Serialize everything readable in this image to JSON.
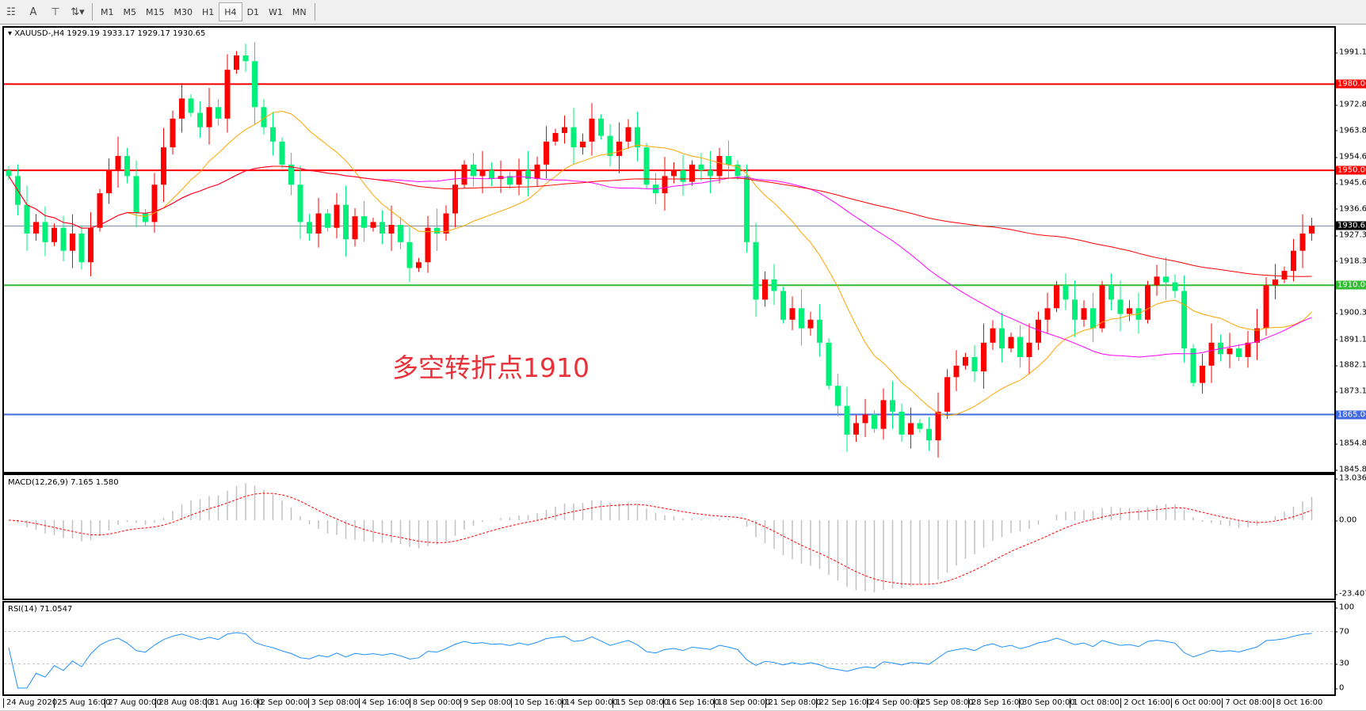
{
  "toolbar": {
    "icons": [
      "grid-icon",
      "text-a-icon",
      "text-label-icon",
      "arrows-icon"
    ],
    "text_icon": "A",
    "timeframes": [
      "M1",
      "M5",
      "M15",
      "M30",
      "H1",
      "H4",
      "D1",
      "W1",
      "MN"
    ],
    "active": "H4"
  },
  "chart": {
    "symbol_header": "XAUUSD-,H4  1929.19 1933.17 1929.17 1930.65",
    "annotation": "多空转折点1910"
  },
  "price_axis": {
    "labels": [
      "1991.10",
      "1972.85",
      "1963.85",
      "1954.60",
      "1945.60",
      "1936.60",
      "1927.35",
      "1918.35",
      "1900.35",
      "1891.10",
      "1882.10",
      "1873.10",
      "1854.85",
      "1845.85"
    ],
    "range": [
      1845.85,
      1991.1
    ]
  },
  "levels": [
    {
      "value": 1980,
      "label": "1980.00",
      "color": "#ff0000"
    },
    {
      "value": 1950,
      "label": "1950.00",
      "color": "#ff0000"
    },
    {
      "value": 1930.65,
      "label": "1930.65",
      "color": "#000000",
      "line": "#778899"
    },
    {
      "value": 1910,
      "label": "1910.00",
      "color": "#33bb33"
    },
    {
      "value": 1865,
      "label": "1865.00",
      "color": "#4169e1"
    }
  ],
  "colors": {
    "up": "#ff0000",
    "down": "#00f07a",
    "ma_fast": "#ffa500",
    "ma_mid": "#ff00ff",
    "ma_slow": "#ff0000",
    "rsi": "#1e90ff",
    "macd_hist": "#c0c0c0",
    "macd_signal": "#ff0000"
  },
  "macd": {
    "label": "MACD(12,26,9) 7.165 1.580",
    "axis": [
      "13.036",
      "0.00",
      "-23.407"
    ]
  },
  "rsi": {
    "label": "RSI(14) 71.0547",
    "axis": [
      "100",
      "70",
      "30",
      "0"
    ]
  },
  "time_axis": [
    "24 Aug 2020",
    "25 Aug 16:00",
    "27 Aug 00:00",
    "28 Aug 08:00",
    "31 Aug 16:00",
    "2 Sep 00:00",
    "3 Sep 08:00",
    "4 Sep 16:00",
    "8 Sep 00:00",
    "9 Sep 08:00",
    "10 Sep 16:00",
    "14 Sep 00:00",
    "15 Sep 08:00",
    "16 Sep 16:00",
    "18 Sep 00:00",
    "21 Sep 08:00",
    "22 Sep 16:00",
    "24 Sep 00:00",
    "25 Sep 08:00",
    "28 Sep 16:00",
    "30 Sep 00:00",
    "1 Oct 08:00",
    "2 Oct 16:00",
    "6 Oct 00:00",
    "7 Oct 08:00",
    "8 Oct 16:00"
  ],
  "chart_data": {
    "type": "candlestick",
    "closes": [
      1948,
      1938,
      1928,
      1932,
      1925,
      1930,
      1922,
      1928,
      1918,
      1930,
      1942,
      1950,
      1955,
      1948,
      1935,
      1932,
      1945,
      1958,
      1968,
      1975,
      1970,
      1965,
      1972,
      1968,
      1985,
      1990,
      1988,
      1972,
      1965,
      1960,
      1952,
      1945,
      1932,
      1928,
      1935,
      1930,
      1938,
      1926,
      1934,
      1930,
      1932,
      1928,
      1931,
      1925,
      1916,
      1918,
      1930,
      1928,
      1935,
      1945,
      1952,
      1948,
      1950,
      1947,
      1948,
      1945,
      1950,
      1947,
      1952,
      1960,
      1963,
      1965,
      1958,
      1960,
      1968,
      1962,
      1955,
      1960,
      1965,
      1958,
      1945,
      1942,
      1948,
      1950,
      1946,
      1952,
      1950,
      1948,
      1955,
      1952,
      1948,
      1925,
      1905,
      1912,
      1908,
      1898,
      1902,
      1895,
      1898,
      1890,
      1875,
      1868,
      1858,
      1862,
      1865,
      1860,
      1870,
      1866,
      1858,
      1862,
      1860,
      1856,
      1866,
      1878,
      1882,
      1885,
      1880,
      1890,
      1895,
      1888,
      1892,
      1885,
      1890,
      1898,
      1902,
      1910,
      1905,
      1898,
      1902,
      1895,
      1910,
      1905,
      1900,
      1902,
      1898,
      1910,
      1913,
      1911,
      1908,
      1888,
      1876,
      1882,
      1890,
      1886,
      1888,
      1885,
      1890,
      1895,
      1910,
      1912,
      1915,
      1922,
      1928,
      1930.65
    ],
    "ylim": [
      1845.85,
      1991.1
    ]
  }
}
